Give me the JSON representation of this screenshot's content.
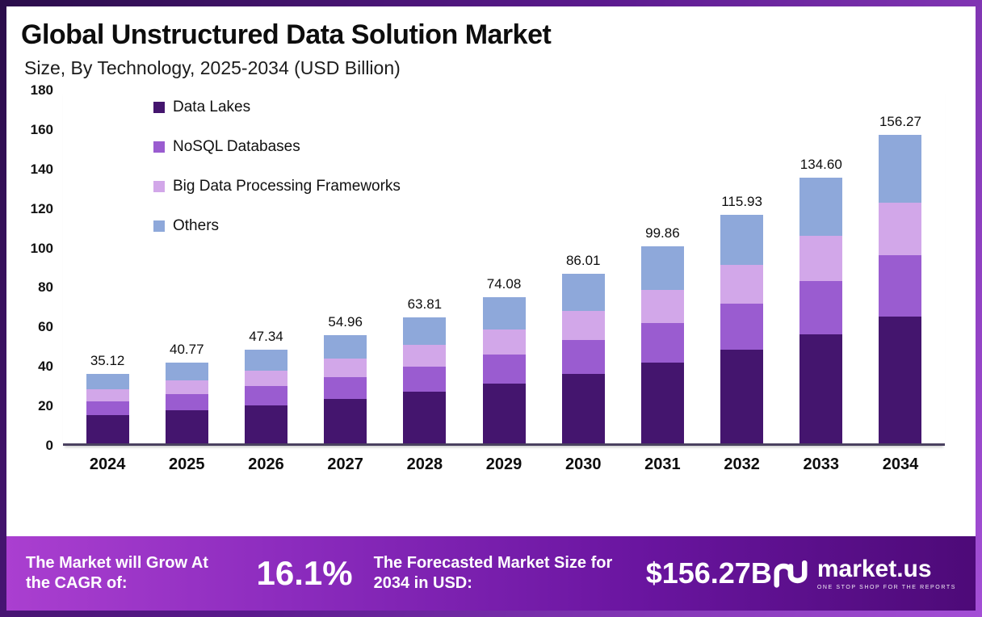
{
  "header": {
    "title": "Global Unstructured Data Solution Market",
    "subtitle": "Size, By Technology, 2025-2034 (USD Billion)"
  },
  "chart_data": {
    "type": "bar",
    "stacked": true,
    "title": "Global Unstructured Data Solution Market Size, By Technology, 2025-2034 (USD Billion)",
    "categories": [
      "2024",
      "2025",
      "2026",
      "2027",
      "2028",
      "2029",
      "2030",
      "2031",
      "2032",
      "2033",
      "2034"
    ],
    "series": [
      {
        "name": "Data Lakes",
        "color": "#44156e",
        "values": [
          14.4,
          16.7,
          19.4,
          22.5,
          26.2,
          30.4,
          35.3,
          40.9,
          47.5,
          55.2,
          64.1
        ]
      },
      {
        "name": "NoSQL Databases",
        "color": "#9a5cd0",
        "values": [
          7.0,
          8.2,
          9.5,
          11.0,
          12.8,
          14.8,
          17.2,
          20.0,
          23.2,
          26.9,
          31.3
        ]
      },
      {
        "name": "Big Data Processing Frameworks",
        "color": "#d2a7e9",
        "values": [
          6.0,
          6.9,
          8.0,
          9.3,
          10.8,
          12.6,
          14.6,
          17.0,
          19.7,
          22.9,
          26.6
        ]
      },
      {
        "name": "Others",
        "color": "#8ea8da",
        "values": [
          7.7,
          9.0,
          10.4,
          12.2,
          14.0,
          16.3,
          18.9,
          22.0,
          25.5,
          29.6,
          34.3
        ]
      }
    ],
    "totals": [
      35.12,
      40.77,
      47.34,
      54.96,
      63.81,
      74.08,
      86.01,
      99.86,
      115.93,
      134.6,
      156.27
    ],
    "total_labels": [
      "35.12",
      "40.77",
      "47.34",
      "54.96",
      "63.81",
      "74.08",
      "86.01",
      "99.86",
      "115.93",
      "134.60",
      "156.27"
    ],
    "ylim": [
      0,
      180
    ],
    "yticks": [
      0,
      20,
      40,
      60,
      80,
      100,
      120,
      140,
      160,
      180
    ],
    "xlabel": "",
    "ylabel": "",
    "grid": false,
    "legend_position": "top-left-inside"
  },
  "footer": {
    "cagr_label": "The Market will Grow At the CAGR of:",
    "cagr_value": "16.1%",
    "forecast_label": "The Forecasted Market Size for 2034 in USD:",
    "forecast_value": "$156.27B",
    "brand": "market.us",
    "brand_tagline": "ONE STOP SHOP FOR THE REPORTS"
  }
}
